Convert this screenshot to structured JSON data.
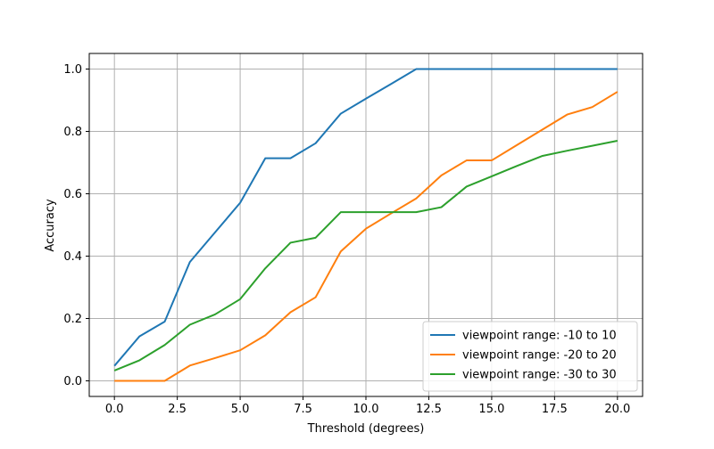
{
  "chart_data": {
    "type": "line",
    "title": "",
    "xlabel": "Threshold (degrees)",
    "ylabel": "Accuracy",
    "xlim": [
      -1,
      21
    ],
    "ylim": [
      -0.05,
      1.05
    ],
    "x_ticks": [
      0.0,
      2.5,
      5.0,
      7.5,
      10.0,
      12.5,
      15.0,
      17.5,
      20.0
    ],
    "x_tick_labels": [
      "0.0",
      "2.5",
      "5.0",
      "7.5",
      "10.0",
      "12.5",
      "15.0",
      "17.5",
      "20.0"
    ],
    "y_ticks": [
      0.0,
      0.2,
      0.4,
      0.6,
      0.8,
      1.0
    ],
    "y_tick_labels": [
      "0.0",
      "0.2",
      "0.4",
      "0.6",
      "0.8",
      "1.0"
    ],
    "grid": true,
    "legend_position": "lower-right",
    "x": [
      0,
      1,
      2,
      3,
      4,
      5,
      6,
      7,
      8,
      9,
      10,
      11,
      12,
      13,
      14,
      15,
      16,
      17,
      18,
      19,
      20
    ],
    "series": [
      {
        "name": "viewpoint range: -10 to 10",
        "color": "#1f77b4",
        "values": [
          0.048,
          0.143,
          0.19,
          0.381,
          0.476,
          0.571,
          0.714,
          0.714,
          0.762,
          0.857,
          0.905,
          0.952,
          1.0,
          1.0,
          1.0,
          1.0,
          1.0,
          1.0,
          1.0,
          1.0,
          1.0
        ]
      },
      {
        "name": "viewpoint range: -20 to 20",
        "color": "#ff7f0e",
        "values": [
          0.0,
          0.0,
          0.0,
          0.049,
          0.073,
          0.098,
          0.146,
          0.22,
          0.268,
          0.415,
          0.488,
          0.537,
          0.585,
          0.659,
          0.707,
          0.707,
          0.756,
          0.805,
          0.854,
          0.878,
          0.927
        ]
      },
      {
        "name": "viewpoint range: -30 to 30",
        "color": "#2ca02c",
        "values": [
          0.033,
          0.066,
          0.115,
          0.18,
          0.213,
          0.262,
          0.361,
          0.443,
          0.459,
          0.541,
          0.541,
          0.541,
          0.541,
          0.557,
          0.623,
          0.656,
          0.689,
          0.721,
          0.738,
          0.754,
          0.77
        ]
      }
    ]
  }
}
